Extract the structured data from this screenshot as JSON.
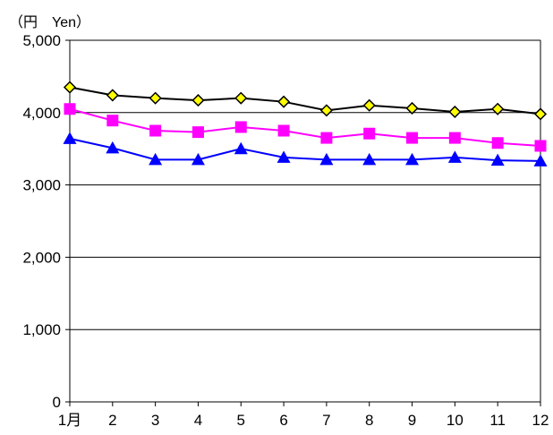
{
  "chart_data": {
    "type": "line",
    "unit_label": "（円　Yen）",
    "categories": [
      "1月",
      "2",
      "3",
      "4",
      "5",
      "6",
      "7",
      "8",
      "9",
      "10",
      "11",
      "12"
    ],
    "y_ticks": [
      "0",
      "1,000",
      "2,000",
      "3,000",
      "4,000",
      "5,000"
    ],
    "ylim": [
      0,
      5000
    ],
    "grid": true,
    "series": [
      {
        "marker": "diamond",
        "color": "#000000",
        "fill": "#ffff00",
        "values": [
          4350,
          4240,
          4200,
          4170,
          4200,
          4150,
          4030,
          4100,
          4060,
          4010,
          4050,
          3980
        ]
      },
      {
        "marker": "square",
        "color": "#ff00ff",
        "fill": "#ff00ff",
        "values": [
          4050,
          3890,
          3750,
          3730,
          3800,
          3750,
          3650,
          3710,
          3650,
          3650,
          3580,
          3540
        ]
      },
      {
        "marker": "triangle",
        "color": "#0000ff",
        "fill": "#0000ff",
        "values": [
          3640,
          3510,
          3350,
          3350,
          3500,
          3380,
          3350,
          3350,
          3350,
          3380,
          3340,
          3330
        ]
      }
    ]
  }
}
